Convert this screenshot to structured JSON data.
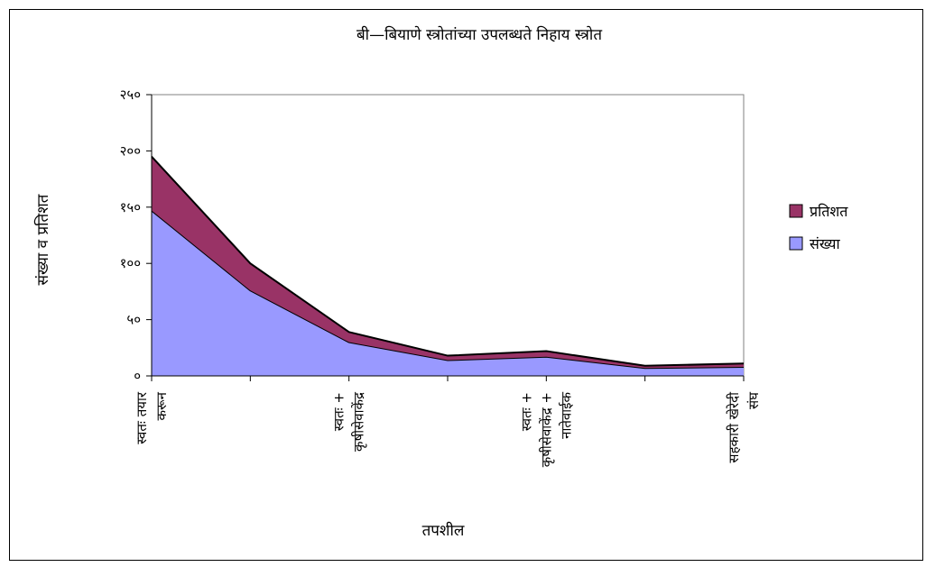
{
  "chart_data": {
    "type": "area",
    "stacked": true,
    "title": "बी—बियाणे स्त्रोतांच्या उपलब्धते निहाय स्त्रोत",
    "xlabel": "तपशील",
    "ylabel": "संख्या व प्रतिशत",
    "ylim": [
      0,
      250
    ],
    "yticks": [
      "२५०",
      "२००",
      "१५०",
      "१००",
      "५०",
      "०"
    ],
    "ytick_values": [
      250,
      200,
      150,
      100,
      50,
      0
    ],
    "categories": [
      [
        "स्वतः तयार",
        "करून"
      ],
      [],
      [
        "स्वतः +",
        "कृषीसेवाकेंद्र"
      ],
      [],
      [
        "स्वतः +",
        "कृषीसेवाकेंद्र +",
        "नातेवाईक"
      ],
      [],
      [
        "सहकारी खेरेदी",
        "संघ"
      ]
    ],
    "series": [
      {
        "name": "संख्या",
        "color": "#9999ff",
        "values": [
          147,
          76,
          30,
          14,
          17,
          7,
          8
        ]
      },
      {
        "name": "प्रतिशत",
        "color": "#993366",
        "values": [
          48,
          24,
          9,
          4,
          5,
          2,
          3
        ]
      }
    ],
    "legend_position": "right",
    "grid": false
  }
}
